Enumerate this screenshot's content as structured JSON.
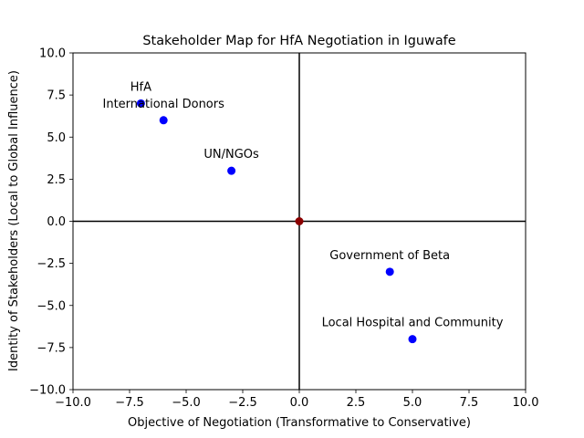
{
  "chart_data": {
    "type": "scatter",
    "title": "Stakeholder Map for HfA Negotiation in Iguwafe",
    "xlabel": "Objective of Negotiation (Transformative to Conservative)",
    "ylabel": "Identity of Stakeholders (Local to Global Influence)",
    "xlim": [
      -10,
      10
    ],
    "ylim": [
      -10,
      10
    ],
    "xticks": [
      -10,
      -7.5,
      -5,
      -2.5,
      0,
      2.5,
      5,
      7.5,
      10
    ],
    "xtick_labels": [
      "−10.0",
      "−7.5",
      "−5.0",
      "−2.5",
      "0.0",
      "2.5",
      "5.0",
      "7.5",
      "10.0"
    ],
    "yticks": [
      -10,
      -7.5,
      -5,
      -2.5,
      0,
      2.5,
      5,
      7.5,
      10
    ],
    "ytick_labels": [
      "−10.0",
      "−7.5",
      "−5.0",
      "−2.5",
      "0.0",
      "2.5",
      "5.0",
      "7.5",
      "10.0"
    ],
    "grid": false,
    "points": [
      {
        "label": "HfA",
        "x": -7,
        "y": 7,
        "color": "#0000ff"
      },
      {
        "label": "International Donors",
        "x": -6,
        "y": 6,
        "color": "#0000ff"
      },
      {
        "label": "UN/NGOs",
        "x": -3,
        "y": 3,
        "color": "#0000ff"
      },
      {
        "label": "Government of Beta",
        "x": 4,
        "y": -3,
        "color": "#0000ff"
      },
      {
        "label": "Local Hospital and Community",
        "x": 5,
        "y": -7,
        "color": "#0000ff"
      }
    ],
    "origin_point": {
      "x": 0,
      "y": 0,
      "color": "#8b0000"
    },
    "reference_lines": {
      "x": 0,
      "y": 0,
      "color": "#000000"
    }
  }
}
